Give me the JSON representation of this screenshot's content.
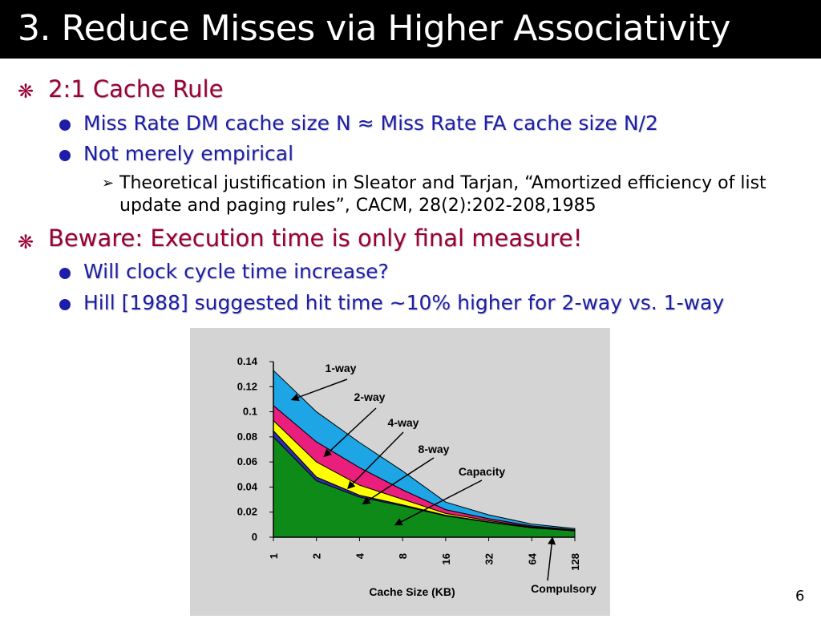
{
  "slide": {
    "title": "3. Reduce Misses via Higher Associativity",
    "page_number": "6"
  },
  "bullets": {
    "b1": "2:1 Cache Rule",
    "b1_1": "Miss Rate DM cache size N ≈ Miss Rate FA cache size N/2",
    "b1_2": "Not merely empirical",
    "b1_2_1_line1": "Theoretical justification in Sleator and Tarjan, “Amortized efficiency of list",
    "b1_2_1_line2": "update and paging rules”, CACM, 28(2):202-208,1985",
    "b2": "Beware: Execution time is only final measure!",
    "b2_1": "Will clock cycle time increase?",
    "b2_2": "Hill [1988] suggested hit time ~10% higher for 2-way vs. 1-way"
  },
  "icons": {
    "level1": "asterisk-bullet-icon",
    "level2": "round-bullet-icon",
    "level3": "arrowhead-bullet-icon"
  },
  "colors": {
    "one_way": "#1ea5e6",
    "two_way": "#ea1e7c",
    "four_way": "#ffff00",
    "eight_way": "#2c2fb0",
    "capacity": "#0e8a18",
    "chart_background": "#d4d4d4"
  },
  "chart_data": {
    "type": "area",
    "stacked": true,
    "categories": [
      "1",
      "2",
      "4",
      "8",
      "16",
      "32",
      "64",
      "128"
    ],
    "xlabel": "Cache Size (KB)",
    "ylabel": "",
    "ylim": [
      0,
      0.14
    ],
    "yticks": [
      "0",
      "0.02",
      "0.04",
      "0.06",
      "0.08",
      "0.1",
      "0.12",
      "0.14"
    ],
    "grid": false,
    "series": [
      {
        "name": "Capacity",
        "values": [
          0.08,
          0.045,
          0.032,
          0.025,
          0.017,
          0.012,
          0.0075,
          0.005
        ]
      },
      {
        "name": "8-way",
        "values": [
          0.005,
          0.003,
          0.0015,
          0.0008,
          0.0005,
          0.0003,
          0.0002,
          0.0001
        ]
      },
      {
        "name": "4-way",
        "values": [
          0.008,
          0.012,
          0.008,
          0.0045,
          0.0015,
          0.001,
          0.0005,
          0.0003
        ]
      },
      {
        "name": "2-way",
        "values": [
          0.012,
          0.016,
          0.014,
          0.0075,
          0.003,
          0.0015,
          0.0008,
          0.0005
        ]
      },
      {
        "name": "1-way",
        "values": [
          0.028,
          0.024,
          0.02,
          0.015,
          0.006,
          0.003,
          0.0015,
          0.001
        ]
      }
    ],
    "annotations": [
      "1-way",
      "2-way",
      "4-way",
      "8-way",
      "Capacity",
      "Compulsory"
    ]
  }
}
